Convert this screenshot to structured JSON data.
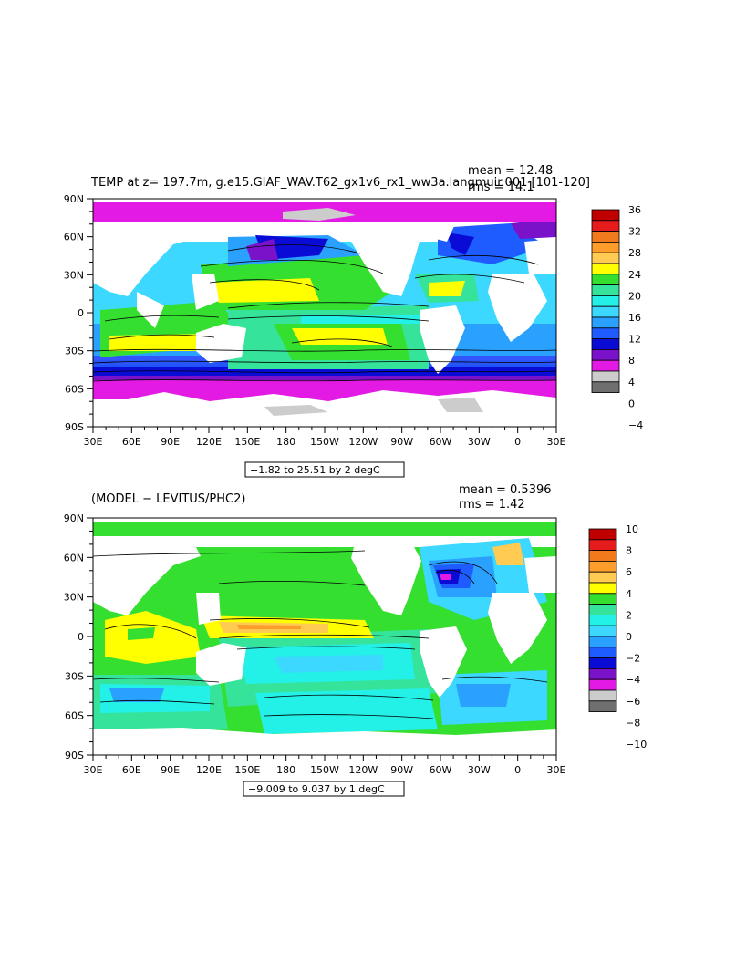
{
  "colors": {
    "magenta": "#e31ae3",
    "purple": "#7a12c9",
    "navy": "#0b0bd6",
    "blue": "#1f5cff",
    "skyblue": "#2aa0ff",
    "cyan": "#3cd8ff",
    "aqua": "#23f0e6",
    "mint": "#35e49a",
    "green": "#34df30",
    "yellow": "#ffff00",
    "lightorange": "#ffcb52",
    "orange": "#ff9d2a",
    "darkorange": "#f07a1c",
    "red": "#e61b1b",
    "darkred": "#c00000",
    "gray": "#cccccc",
    "darkgray": "#6f6f6f"
  },
  "x_ticks": [
    "30E",
    "60E",
    "90E",
    "120E",
    "150E",
    "180",
    "150W",
    "120W",
    "90W",
    "60W",
    "30W",
    "0",
    "30E"
  ],
  "y_ticks": [
    "90N",
    "60N",
    "30N",
    "0",
    "30S",
    "60S",
    "90S"
  ],
  "panels": [
    {
      "title": "TEMP at z= 197.7m, g.e15.GIAF_WAV.T62_gx1v6_rx1_ww3a.langmuir.001 [101-120]",
      "stat1": "mean = 12.48",
      "stat2": "rms = 14.1",
      "range_label": "−1.82 to 25.51 by 2 degC",
      "colorbar_labels": [
        "36",
        "32",
        "28",
        "24",
        "20",
        "16",
        "12",
        "8",
        "4",
        "0",
        "−4"
      ],
      "colorbar_colors": [
        "#c00000",
        "#e61b1b",
        "#f07a1c",
        "#ff9d2a",
        "#ffcb52",
        "#ffff00",
        "#34df30",
        "#35e49a",
        "#23f0e6",
        "#3cd8ff",
        "#2aa0ff",
        "#1f5cff",
        "#0b0bd6",
        "#7a12c9",
        "#e31ae3",
        "#cccccc",
        "#6f6f6f"
      ]
    },
    {
      "title": "(MODEL − LEVITUS/PHC2)",
      "stat1": "mean = 0.5396",
      "stat2": "rms = 1.42",
      "range_label": "−9.009 to 9.037 by 1 degC",
      "colorbar_labels": [
        "10",
        "8",
        "6",
        "4",
        "2",
        "0",
        "−2",
        "−4",
        "−6",
        "−8",
        "−10"
      ],
      "colorbar_colors": [
        "#c00000",
        "#e61b1b",
        "#f07a1c",
        "#ff9d2a",
        "#ffcb52",
        "#ffff00",
        "#34df30",
        "#35e49a",
        "#23f0e6",
        "#3cd8ff",
        "#2aa0ff",
        "#1f5cff",
        "#0b0bd6",
        "#7a12c9",
        "#e31ae3",
        "#cccccc",
        "#6f6f6f"
      ]
    }
  ]
}
